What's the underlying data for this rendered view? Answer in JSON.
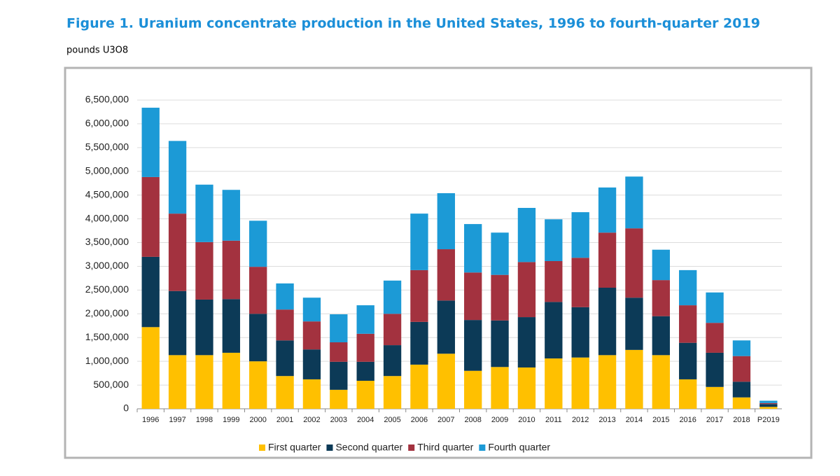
{
  "chart_data": {
    "type": "stacked_bar",
    "title": "Figure 1. Uranium concentrate production in the United States, 1996 to fourth-quarter 2019",
    "subtitle": "pounds U3O8",
    "categories": [
      "1996",
      "1997",
      "1998",
      "1999",
      "2000",
      "2001",
      "2002",
      "2003",
      "2004",
      "2005",
      "2006",
      "2007",
      "2008",
      "2009",
      "2010",
      "2011",
      "2012",
      "2013",
      "2014",
      "2015",
      "2016",
      "2017",
      "2018",
      "P2019"
    ],
    "series": [
      {
        "name": "First quarter",
        "color": "#ffc000",
        "values": [
          1720000,
          1130000,
          1130000,
          1180000,
          1000000,
          690000,
          620000,
          400000,
          590000,
          690000,
          930000,
          1160000,
          800000,
          880000,
          870000,
          1060000,
          1080000,
          1130000,
          1240000,
          1130000,
          620000,
          460000,
          240000,
          40000
        ]
      },
      {
        "name": "Second quarter",
        "color": "#0c3a57",
        "values": [
          1480000,
          1350000,
          1170000,
          1130000,
          1000000,
          750000,
          630000,
          590000,
          400000,
          650000,
          900000,
          1120000,
          1070000,
          980000,
          1060000,
          1190000,
          1060000,
          1420000,
          1100000,
          820000,
          770000,
          720000,
          330000,
          60000
        ]
      },
      {
        "name": "Third quarter",
        "color": "#a3323f",
        "values": [
          1680000,
          1630000,
          1210000,
          1230000,
          990000,
          650000,
          590000,
          410000,
          590000,
          660000,
          1090000,
          1080000,
          1000000,
          960000,
          1160000,
          860000,
          1040000,
          1160000,
          1460000,
          760000,
          790000,
          630000,
          540000,
          20000
        ]
      },
      {
        "name": "Fourth quarter",
        "color": "#1c9ad6",
        "values": [
          1460000,
          1530000,
          1210000,
          1070000,
          970000,
          550000,
          500000,
          590000,
          600000,
          700000,
          1190000,
          1180000,
          1020000,
          890000,
          1140000,
          880000,
          960000,
          950000,
          1090000,
          640000,
          740000,
          640000,
          330000,
          50000
        ]
      }
    ],
    "ylim": [
      0,
      6500000
    ],
    "yticks": [
      0,
      {
        "value": 500000,
        "label": "500,000"
      },
      {
        "value": 1000000,
        "label": "1,000,000"
      },
      {
        "value": 1500000,
        "label": "1,500,000"
      },
      {
        "value": 2000000,
        "label": "2,000,000"
      },
      {
        "value": 2500000,
        "label": "2,500,000"
      },
      {
        "value": 3000000,
        "label": "3,000,000"
      },
      {
        "value": 3500000,
        "label": "3,500,000"
      },
      {
        "value": 4000000,
        "label": "4,000,000"
      },
      {
        "value": 4500000,
        "label": "4,500,000"
      },
      {
        "value": 5000000,
        "label": "5,000,000"
      },
      {
        "value": 5500000,
        "label": "5,500,000"
      },
      {
        "value": 6000000,
        "label": "6,000,000"
      },
      {
        "value": 6500000,
        "label": "6,500,000"
      }
    ],
    "grid": true,
    "legend": "bottom"
  }
}
